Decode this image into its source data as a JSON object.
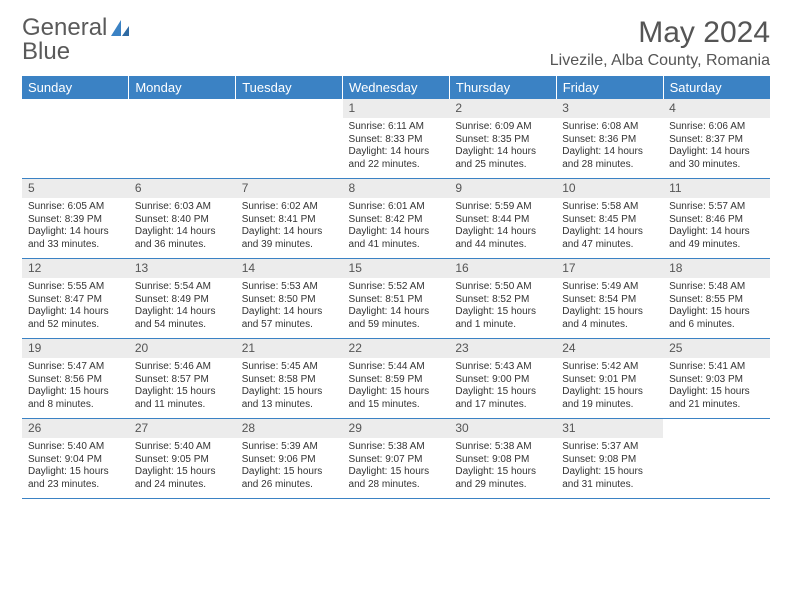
{
  "brand": {
    "part1": "General",
    "part2": "Blue"
  },
  "title": "May 2024",
  "location": "Livezile, Alba County, Romania",
  "colors": {
    "header_bg": "#3b82c4",
    "header_text": "#ffffff",
    "daynum_bg": "#ececec",
    "text": "#333333",
    "rule": "#3b82c4"
  },
  "weekdays": [
    "Sunday",
    "Monday",
    "Tuesday",
    "Wednesday",
    "Thursday",
    "Friday",
    "Saturday"
  ],
  "weeks": [
    [
      {
        "n": "",
        "lines": [
          "",
          "",
          "",
          ""
        ]
      },
      {
        "n": "",
        "lines": [
          "",
          "",
          "",
          ""
        ]
      },
      {
        "n": "",
        "lines": [
          "",
          "",
          "",
          ""
        ]
      },
      {
        "n": "1",
        "lines": [
          "Sunrise: 6:11 AM",
          "Sunset: 8:33 PM",
          "Daylight: 14 hours",
          "and 22 minutes."
        ]
      },
      {
        "n": "2",
        "lines": [
          "Sunrise: 6:09 AM",
          "Sunset: 8:35 PM",
          "Daylight: 14 hours",
          "and 25 minutes."
        ]
      },
      {
        "n": "3",
        "lines": [
          "Sunrise: 6:08 AM",
          "Sunset: 8:36 PM",
          "Daylight: 14 hours",
          "and 28 minutes."
        ]
      },
      {
        "n": "4",
        "lines": [
          "Sunrise: 6:06 AM",
          "Sunset: 8:37 PM",
          "Daylight: 14 hours",
          "and 30 minutes."
        ]
      }
    ],
    [
      {
        "n": "5",
        "lines": [
          "Sunrise: 6:05 AM",
          "Sunset: 8:39 PM",
          "Daylight: 14 hours",
          "and 33 minutes."
        ]
      },
      {
        "n": "6",
        "lines": [
          "Sunrise: 6:03 AM",
          "Sunset: 8:40 PM",
          "Daylight: 14 hours",
          "and 36 minutes."
        ]
      },
      {
        "n": "7",
        "lines": [
          "Sunrise: 6:02 AM",
          "Sunset: 8:41 PM",
          "Daylight: 14 hours",
          "and 39 minutes."
        ]
      },
      {
        "n": "8",
        "lines": [
          "Sunrise: 6:01 AM",
          "Sunset: 8:42 PM",
          "Daylight: 14 hours",
          "and 41 minutes."
        ]
      },
      {
        "n": "9",
        "lines": [
          "Sunrise: 5:59 AM",
          "Sunset: 8:44 PM",
          "Daylight: 14 hours",
          "and 44 minutes."
        ]
      },
      {
        "n": "10",
        "lines": [
          "Sunrise: 5:58 AM",
          "Sunset: 8:45 PM",
          "Daylight: 14 hours",
          "and 47 minutes."
        ]
      },
      {
        "n": "11",
        "lines": [
          "Sunrise: 5:57 AM",
          "Sunset: 8:46 PM",
          "Daylight: 14 hours",
          "and 49 minutes."
        ]
      }
    ],
    [
      {
        "n": "12",
        "lines": [
          "Sunrise: 5:55 AM",
          "Sunset: 8:47 PM",
          "Daylight: 14 hours",
          "and 52 minutes."
        ]
      },
      {
        "n": "13",
        "lines": [
          "Sunrise: 5:54 AM",
          "Sunset: 8:49 PM",
          "Daylight: 14 hours",
          "and 54 minutes."
        ]
      },
      {
        "n": "14",
        "lines": [
          "Sunrise: 5:53 AM",
          "Sunset: 8:50 PM",
          "Daylight: 14 hours",
          "and 57 minutes."
        ]
      },
      {
        "n": "15",
        "lines": [
          "Sunrise: 5:52 AM",
          "Sunset: 8:51 PM",
          "Daylight: 14 hours",
          "and 59 minutes."
        ]
      },
      {
        "n": "16",
        "lines": [
          "Sunrise: 5:50 AM",
          "Sunset: 8:52 PM",
          "Daylight: 15 hours",
          "and 1 minute."
        ]
      },
      {
        "n": "17",
        "lines": [
          "Sunrise: 5:49 AM",
          "Sunset: 8:54 PM",
          "Daylight: 15 hours",
          "and 4 minutes."
        ]
      },
      {
        "n": "18",
        "lines": [
          "Sunrise: 5:48 AM",
          "Sunset: 8:55 PM",
          "Daylight: 15 hours",
          "and 6 minutes."
        ]
      }
    ],
    [
      {
        "n": "19",
        "lines": [
          "Sunrise: 5:47 AM",
          "Sunset: 8:56 PM",
          "Daylight: 15 hours",
          "and 8 minutes."
        ]
      },
      {
        "n": "20",
        "lines": [
          "Sunrise: 5:46 AM",
          "Sunset: 8:57 PM",
          "Daylight: 15 hours",
          "and 11 minutes."
        ]
      },
      {
        "n": "21",
        "lines": [
          "Sunrise: 5:45 AM",
          "Sunset: 8:58 PM",
          "Daylight: 15 hours",
          "and 13 minutes."
        ]
      },
      {
        "n": "22",
        "lines": [
          "Sunrise: 5:44 AM",
          "Sunset: 8:59 PM",
          "Daylight: 15 hours",
          "and 15 minutes."
        ]
      },
      {
        "n": "23",
        "lines": [
          "Sunrise: 5:43 AM",
          "Sunset: 9:00 PM",
          "Daylight: 15 hours",
          "and 17 minutes."
        ]
      },
      {
        "n": "24",
        "lines": [
          "Sunrise: 5:42 AM",
          "Sunset: 9:01 PM",
          "Daylight: 15 hours",
          "and 19 minutes."
        ]
      },
      {
        "n": "25",
        "lines": [
          "Sunrise: 5:41 AM",
          "Sunset: 9:03 PM",
          "Daylight: 15 hours",
          "and 21 minutes."
        ]
      }
    ],
    [
      {
        "n": "26",
        "lines": [
          "Sunrise: 5:40 AM",
          "Sunset: 9:04 PM",
          "Daylight: 15 hours",
          "and 23 minutes."
        ]
      },
      {
        "n": "27",
        "lines": [
          "Sunrise: 5:40 AM",
          "Sunset: 9:05 PM",
          "Daylight: 15 hours",
          "and 24 minutes."
        ]
      },
      {
        "n": "28",
        "lines": [
          "Sunrise: 5:39 AM",
          "Sunset: 9:06 PM",
          "Daylight: 15 hours",
          "and 26 minutes."
        ]
      },
      {
        "n": "29",
        "lines": [
          "Sunrise: 5:38 AM",
          "Sunset: 9:07 PM",
          "Daylight: 15 hours",
          "and 28 minutes."
        ]
      },
      {
        "n": "30",
        "lines": [
          "Sunrise: 5:38 AM",
          "Sunset: 9:08 PM",
          "Daylight: 15 hours",
          "and 29 minutes."
        ]
      },
      {
        "n": "31",
        "lines": [
          "Sunrise: 5:37 AM",
          "Sunset: 9:08 PM",
          "Daylight: 15 hours",
          "and 31 minutes."
        ]
      },
      {
        "n": "",
        "lines": [
          "",
          "",
          "",
          ""
        ]
      }
    ]
  ]
}
